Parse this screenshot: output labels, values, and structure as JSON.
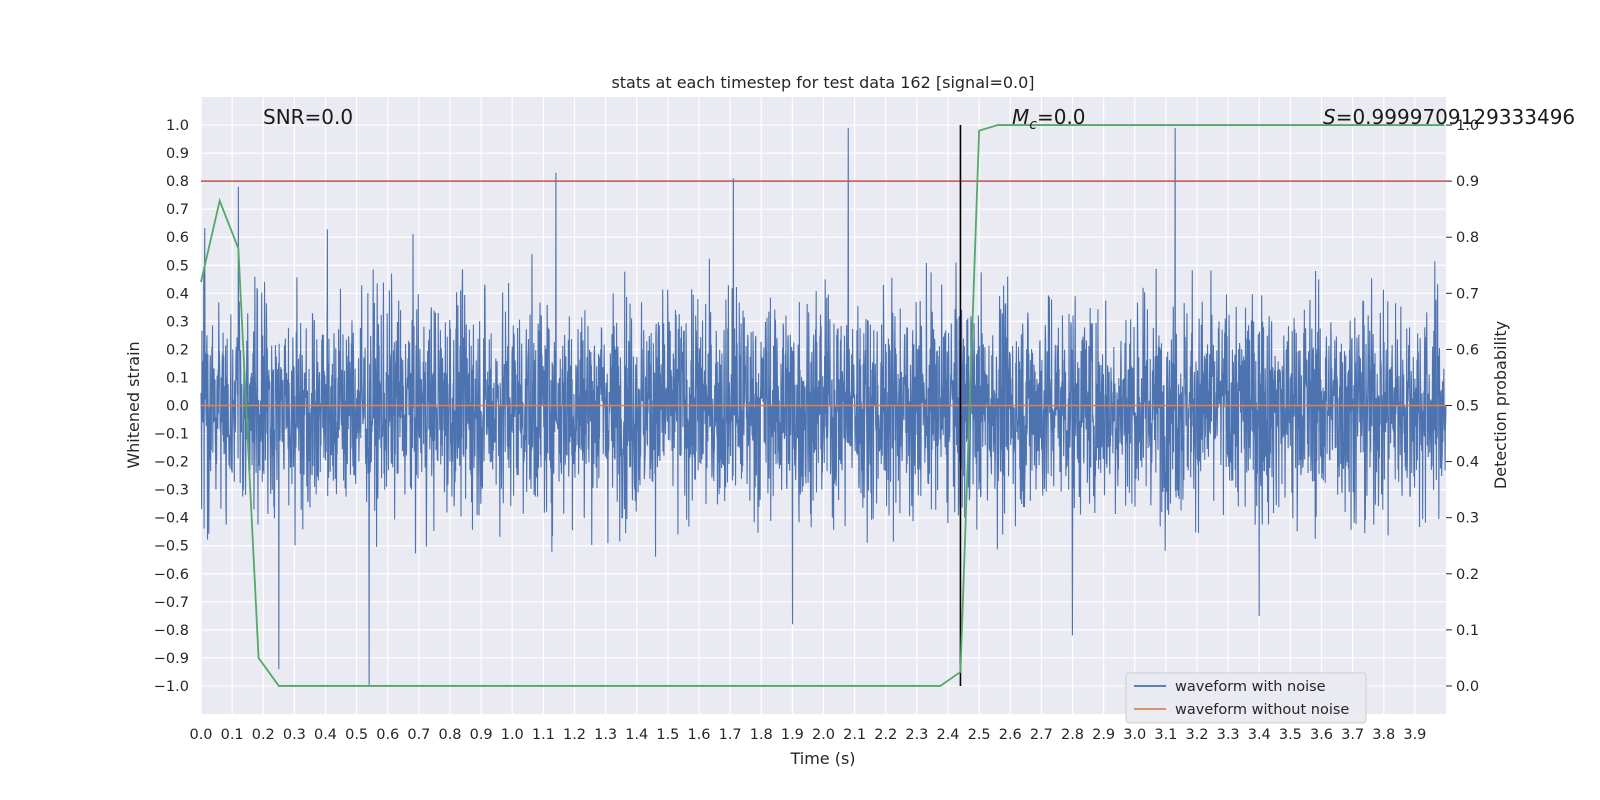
{
  "chart_data": {
    "type": "line",
    "title": "stats at each timestep for test data 162 [signal=0.0]",
    "xlabel": "Time (s)",
    "ylabel": "Whitened strain",
    "y2label": "Detection probability",
    "xlim": [
      0.0,
      4.0
    ],
    "ylim": [
      -1.1,
      1.1
    ],
    "y2lim": [
      -0.05,
      1.05
    ],
    "xticks": [
      "0.0",
      "0.1",
      "0.2",
      "0.3",
      "0.4",
      "0.5",
      "0.6",
      "0.7",
      "0.8",
      "0.9",
      "1.0",
      "1.1",
      "1.2",
      "1.3",
      "1.4",
      "1.5",
      "1.6",
      "1.7",
      "1.8",
      "1.9",
      "2.0",
      "2.1",
      "2.2",
      "2.3",
      "2.4",
      "2.5",
      "2.6",
      "2.7",
      "2.8",
      "2.9",
      "3.0",
      "3.1",
      "3.2",
      "3.3",
      "3.4",
      "3.5",
      "3.6",
      "3.7",
      "3.8",
      "3.9"
    ],
    "yticks": [
      "1.0",
      "0.9",
      "0.8",
      "0.7",
      "0.6",
      "0.5",
      "0.4",
      "0.3",
      "0.2",
      "0.1",
      "0.0",
      "−0.1",
      "−0.2",
      "−0.3",
      "−0.4",
      "−0.5",
      "−0.6",
      "−0.7",
      "−0.8",
      "−0.9",
      "−1.0"
    ],
    "y2ticks": [
      "1.0",
      "0.9",
      "0.8",
      "0.7",
      "0.6",
      "0.5",
      "0.4",
      "0.3",
      "0.2",
      "0.1",
      "0.0"
    ],
    "grid": true,
    "legend_position": "bottom-right",
    "annotations": {
      "snr": "SNR=0.0",
      "mc_symbol": "M",
      "mc_subscript": "c",
      "mc_value": "=0.0",
      "s_symbol": "S",
      "s_value": "=0.9999709129333496"
    },
    "series": [
      {
        "name": "waveform with noise",
        "color": "#4c72b0",
        "axis": "left",
        "description_samples": 4000,
        "peaks": [
          {
            "x": 0.54,
            "y": -1.0
          },
          {
            "x": 2.08,
            "y": 0.99
          },
          {
            "x": 3.13,
            "y": 0.99
          },
          {
            "x": 0.25,
            "y": -0.94
          },
          {
            "x": 1.14,
            "y": 0.83
          },
          {
            "x": 2.8,
            "y": -0.82
          },
          {
            "x": 0.12,
            "y": 0.78
          },
          {
            "x": 1.71,
            "y": 0.81
          },
          {
            "x": 1.9,
            "y": -0.78
          },
          {
            "x": 3.4,
            "y": -0.75
          }
        ]
      },
      {
        "name": "waveform without noise",
        "color": "#dd8452",
        "axis": "left",
        "x": [
          0.0,
          4.0
        ],
        "y": [
          0.0,
          0.0
        ]
      },
      {
        "name": "detection probability",
        "color": "#55a868",
        "axis": "right",
        "x": [
          0.0,
          0.06,
          0.12,
          0.185,
          0.25,
          2.375,
          2.44,
          2.5,
          2.56,
          3.995
        ],
        "y": [
          0.72,
          0.865,
          0.78,
          0.05,
          0.0,
          0.0,
          0.025,
          0.99,
          1.0,
          1.0
        ]
      }
    ],
    "threshold": {
      "axis": "right",
      "y": 0.9,
      "color": "#c44e52"
    },
    "vline": {
      "x": 2.44,
      "color": "#000000"
    }
  }
}
